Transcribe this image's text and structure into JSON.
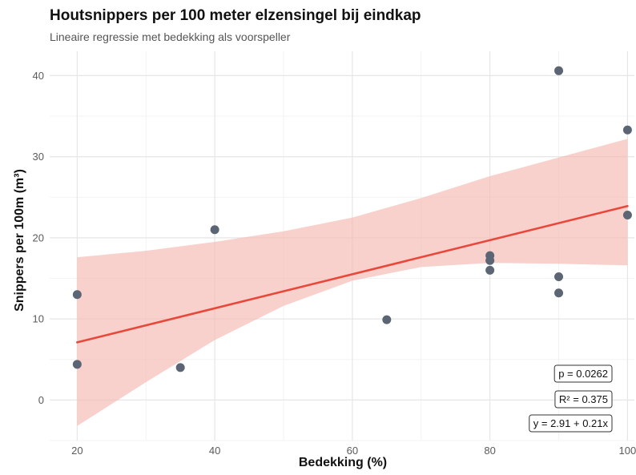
{
  "title": "Houtsnippers per 100 meter elzensingel bij eindkap",
  "subtitle": "Lineaire regressie met bedekking als voorspeller",
  "chart_data": {
    "type": "scatter",
    "xlabel": "Bedekking (%)",
    "ylabel": "Snippers per 100m (m³)",
    "xlim": [
      16,
      101
    ],
    "ylim": [
      -5,
      43
    ],
    "x_ticks": [
      "20",
      "40",
      "60",
      "80",
      "100"
    ],
    "y_ticks": [
      "0",
      "10",
      "20",
      "30",
      "40"
    ],
    "grid": true,
    "points": [
      {
        "x": 20,
        "y": 13.0
      },
      {
        "x": 20,
        "y": 4.4
      },
      {
        "x": 35,
        "y": 4.0
      },
      {
        "x": 40,
        "y": 21.0
      },
      {
        "x": 65,
        "y": 9.9
      },
      {
        "x": 80,
        "y": 17.8
      },
      {
        "x": 80,
        "y": 17.2
      },
      {
        "x": 80,
        "y": 16.0
      },
      {
        "x": 90,
        "y": 40.6
      },
      {
        "x": 90,
        "y": 15.2
      },
      {
        "x": 90,
        "y": 13.2
      },
      {
        "x": 100,
        "y": 33.3
      },
      {
        "x": 100,
        "y": 22.8
      }
    ],
    "regression": {
      "intercept": 2.91,
      "slope": 0.21
    },
    "confidence_band": [
      {
        "x": 20,
        "lower": -3.2,
        "upper": 17.6
      },
      {
        "x": 30,
        "lower": 2.2,
        "upper": 18.4
      },
      {
        "x": 40,
        "lower": 7.4,
        "upper": 19.5
      },
      {
        "x": 50,
        "lower": 11.6,
        "upper": 20.8
      },
      {
        "x": 60,
        "lower": 14.7,
        "upper": 22.5
      },
      {
        "x": 70,
        "lower": 16.4,
        "upper": 24.9
      },
      {
        "x": 80,
        "lower": 16.9,
        "upper": 27.6
      },
      {
        "x": 90,
        "lower": 16.8,
        "upper": 29.9
      },
      {
        "x": 100,
        "lower": 16.6,
        "upper": 32.2
      }
    ],
    "annotations": [
      "p = 0.0262",
      "R² = 0.375",
      "y = 2.91 + 0.21x"
    ],
    "colors": {
      "points": "#5b6573",
      "line": "#e8483a",
      "band": "#f4b8b2"
    }
  }
}
